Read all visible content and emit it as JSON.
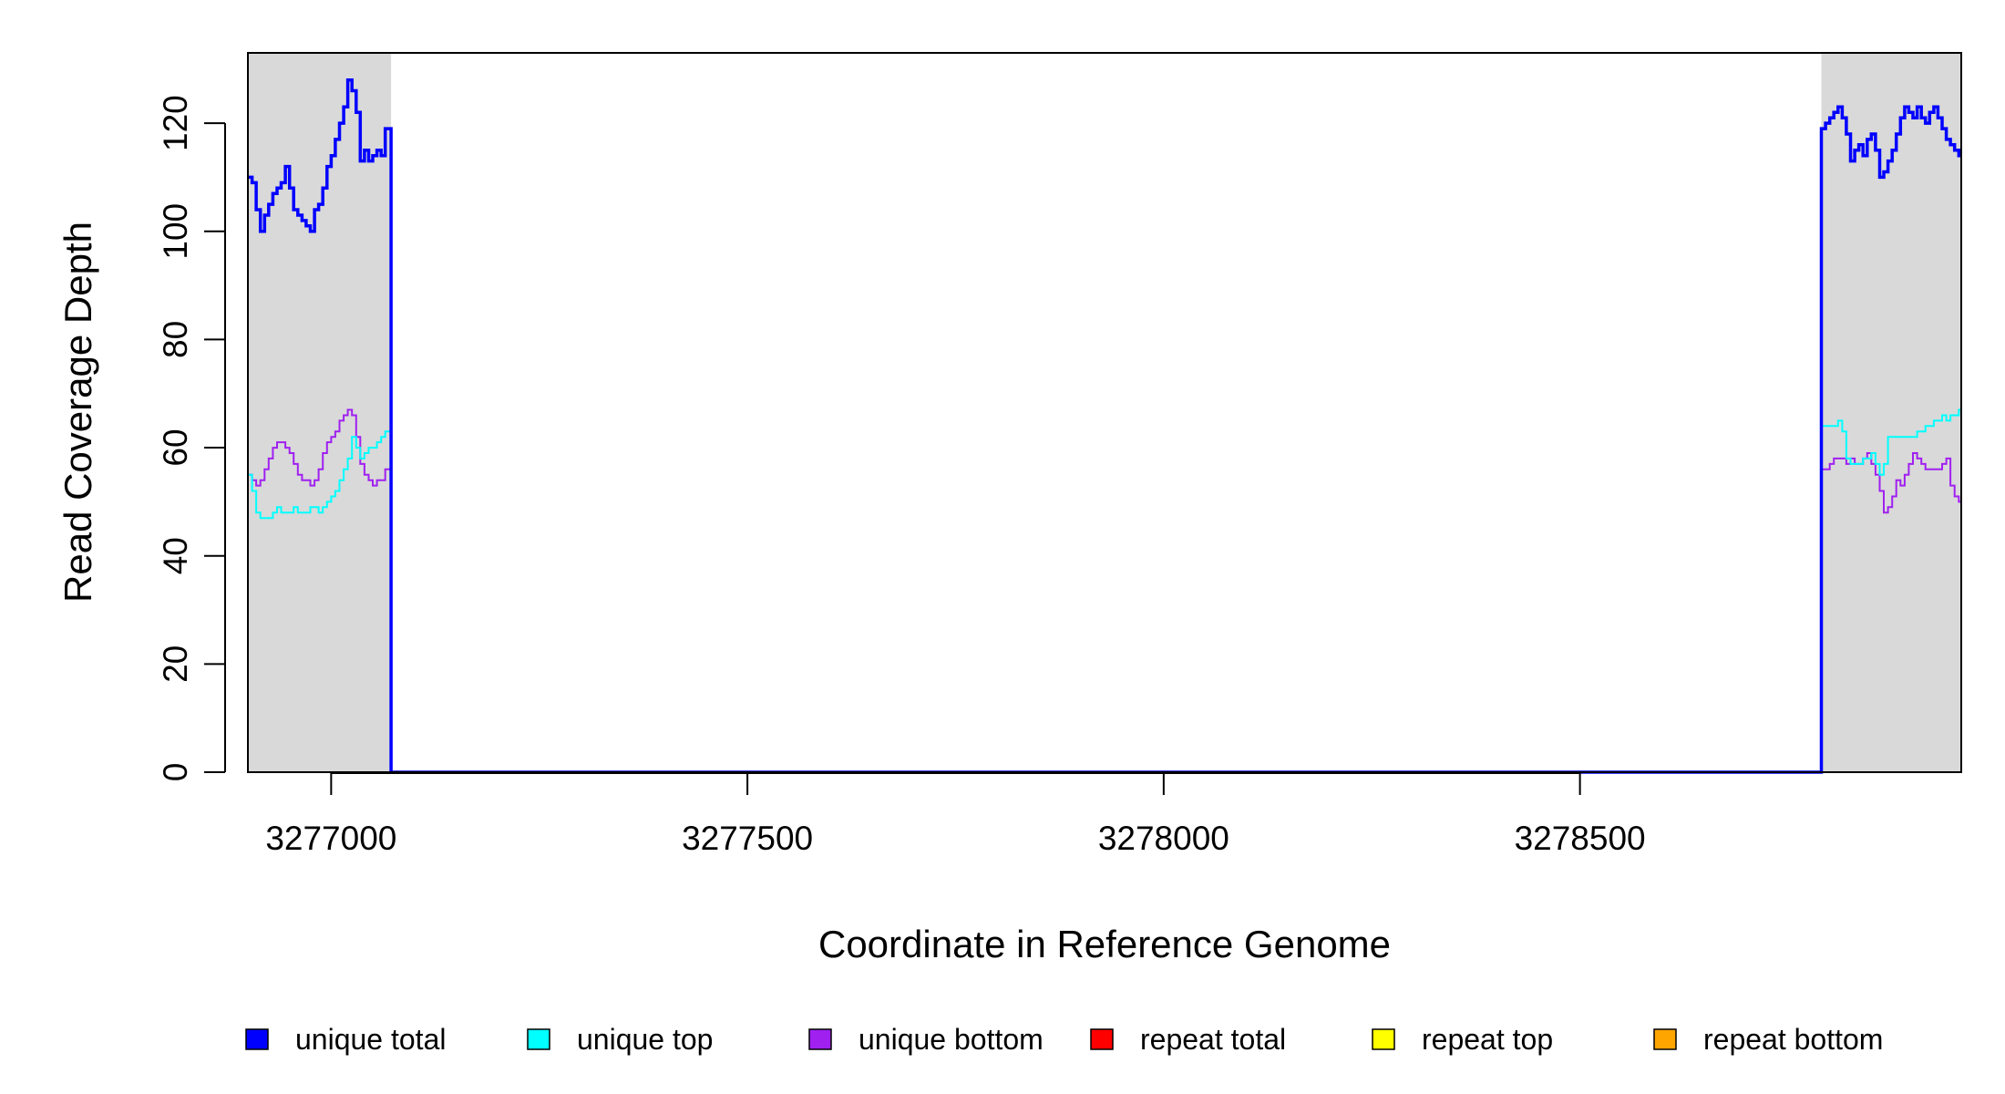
{
  "chart_data": {
    "type": "line",
    "xlabel": "Coordinate in Reference Genome",
    "ylabel": "Read Coverage Depth",
    "xlim": [
      3276900,
      3278958
    ],
    "ylim": [
      0,
      133
    ],
    "x_ticks": [
      3277000,
      3277500,
      3278000,
      3278500
    ],
    "x_tick_labels": [
      "3277000",
      "3277500",
      "3278000",
      "3278500"
    ],
    "y_ticks": [
      0,
      20,
      40,
      60,
      80,
      100,
      120
    ],
    "y_tick_labels": [
      "0",
      "20",
      "40",
      "60",
      "80",
      "100",
      "120"
    ],
    "grid": false,
    "legend_position": "bottom",
    "shaded_regions": [
      [
        3276900,
        3277072
      ],
      [
        3278790,
        3278958
      ]
    ],
    "shade_color": "#d9d9d9",
    "series": [
      {
        "name": "unique total",
        "color": "#0000ff",
        "points": [
          [
            3276900,
            110
          ],
          [
            3276905,
            109
          ],
          [
            3276910,
            104
          ],
          [
            3276915,
            100
          ],
          [
            3276920,
            103
          ],
          [
            3276925,
            105
          ],
          [
            3276930,
            107
          ],
          [
            3276935,
            108
          ],
          [
            3276940,
            109
          ],
          [
            3276945,
            112
          ],
          [
            3276950,
            108
          ],
          [
            3276955,
            104
          ],
          [
            3276960,
            103
          ],
          [
            3276965,
            102
          ],
          [
            3276970,
            101
          ],
          [
            3276975,
            100
          ],
          [
            3276980,
            104
          ],
          [
            3276985,
            105
          ],
          [
            3276990,
            108
          ],
          [
            3276995,
            112
          ],
          [
            3277000,
            114
          ],
          [
            3277005,
            117
          ],
          [
            3277010,
            120
          ],
          [
            3277015,
            123
          ],
          [
            3277020,
            128
          ],
          [
            3277025,
            126
          ],
          [
            3277030,
            122
          ],
          [
            3277035,
            113
          ],
          [
            3277040,
            115
          ],
          [
            3277045,
            113
          ],
          [
            3277050,
            114
          ],
          [
            3277055,
            115
          ],
          [
            3277060,
            114
          ],
          [
            3277065,
            119
          ],
          [
            3277072,
            0
          ],
          [
            3277500,
            0
          ],
          [
            3278000,
            0
          ],
          [
            3278500,
            0
          ],
          [
            3278790,
            119
          ],
          [
            3278795,
            120
          ],
          [
            3278800,
            121
          ],
          [
            3278805,
            122
          ],
          [
            3278810,
            123
          ],
          [
            3278815,
            121
          ],
          [
            3278820,
            118
          ],
          [
            3278825,
            113
          ],
          [
            3278830,
            115
          ],
          [
            3278835,
            116
          ],
          [
            3278840,
            114
          ],
          [
            3278845,
            117
          ],
          [
            3278850,
            118
          ],
          [
            3278855,
            115
          ],
          [
            3278860,
            110
          ],
          [
            3278865,
            111
          ],
          [
            3278870,
            113
          ],
          [
            3278875,
            115
          ],
          [
            3278880,
            118
          ],
          [
            3278885,
            121
          ],
          [
            3278890,
            123
          ],
          [
            3278895,
            122
          ],
          [
            3278900,
            121
          ],
          [
            3278905,
            123
          ],
          [
            3278910,
            121
          ],
          [
            3278915,
            120
          ],
          [
            3278920,
            122
          ],
          [
            3278925,
            123
          ],
          [
            3278930,
            121
          ],
          [
            3278935,
            119
          ],
          [
            3278940,
            117
          ],
          [
            3278945,
            116
          ],
          [
            3278950,
            115
          ],
          [
            3278955,
            114
          ]
        ]
      },
      {
        "name": "unique top",
        "color": "#00ffff",
        "points": [
          [
            3276900,
            55
          ],
          [
            3276905,
            52
          ],
          [
            3276910,
            48
          ],
          [
            3276915,
            47
          ],
          [
            3276920,
            47
          ],
          [
            3276925,
            47
          ],
          [
            3276930,
            48
          ],
          [
            3276935,
            49
          ],
          [
            3276940,
            48
          ],
          [
            3276945,
            48
          ],
          [
            3276950,
            48
          ],
          [
            3276955,
            49
          ],
          [
            3276960,
            48
          ],
          [
            3276965,
            48
          ],
          [
            3276970,
            48
          ],
          [
            3276975,
            49
          ],
          [
            3276980,
            49
          ],
          [
            3276985,
            48
          ],
          [
            3276990,
            49
          ],
          [
            3276995,
            50
          ],
          [
            3277000,
            51
          ],
          [
            3277005,
            52
          ],
          [
            3277010,
            54
          ],
          [
            3277015,
            56
          ],
          [
            3277020,
            58
          ],
          [
            3277025,
            62
          ],
          [
            3277030,
            60
          ],
          [
            3277035,
            58
          ],
          [
            3277040,
            59
          ],
          [
            3277045,
            60
          ],
          [
            3277050,
            60
          ],
          [
            3277055,
            61
          ],
          [
            3277060,
            62
          ],
          [
            3277065,
            63
          ],
          [
            3277072,
            0
          ],
          [
            3277500,
            0
          ],
          [
            3278000,
            0
          ],
          [
            3278500,
            0
          ],
          [
            3278790,
            64
          ],
          [
            3278795,
            64
          ],
          [
            3278800,
            64
          ],
          [
            3278805,
            64
          ],
          [
            3278810,
            65
          ],
          [
            3278815,
            63
          ],
          [
            3278820,
            58
          ],
          [
            3278825,
            57
          ],
          [
            3278830,
            57
          ],
          [
            3278835,
            57
          ],
          [
            3278840,
            58
          ],
          [
            3278845,
            58
          ],
          [
            3278850,
            59
          ],
          [
            3278855,
            57
          ],
          [
            3278860,
            55
          ],
          [
            3278865,
            57
          ],
          [
            3278870,
            62
          ],
          [
            3278875,
            62
          ],
          [
            3278880,
            62
          ],
          [
            3278885,
            62
          ],
          [
            3278890,
            62
          ],
          [
            3278895,
            62
          ],
          [
            3278900,
            62
          ],
          [
            3278905,
            63
          ],
          [
            3278910,
            63
          ],
          [
            3278915,
            64
          ],
          [
            3278920,
            64
          ],
          [
            3278925,
            65
          ],
          [
            3278930,
            65
          ],
          [
            3278935,
            66
          ],
          [
            3278940,
            65
          ],
          [
            3278945,
            66
          ],
          [
            3278950,
            66
          ],
          [
            3278955,
            67
          ]
        ]
      },
      {
        "name": "unique bottom",
        "color": "#a020f0",
        "points": [
          [
            3276900,
            55
          ],
          [
            3276905,
            54
          ],
          [
            3276910,
            53
          ],
          [
            3276915,
            54
          ],
          [
            3276920,
            56
          ],
          [
            3276925,
            58
          ],
          [
            3276930,
            60
          ],
          [
            3276935,
            61
          ],
          [
            3276940,
            61
          ],
          [
            3276945,
            60
          ],
          [
            3276950,
            59
          ],
          [
            3276955,
            57
          ],
          [
            3276960,
            55
          ],
          [
            3276965,
            54
          ],
          [
            3276970,
            54
          ],
          [
            3276975,
            53
          ],
          [
            3276980,
            54
          ],
          [
            3276985,
            56
          ],
          [
            3276990,
            59
          ],
          [
            3276995,
            61
          ],
          [
            3277000,
            62
          ],
          [
            3277005,
            63
          ],
          [
            3277010,
            65
          ],
          [
            3277015,
            66
          ],
          [
            3277020,
            67
          ],
          [
            3277025,
            66
          ],
          [
            3277030,
            62
          ],
          [
            3277035,
            57
          ],
          [
            3277040,
            55
          ],
          [
            3277045,
            54
          ],
          [
            3277050,
            53
          ],
          [
            3277055,
            54
          ],
          [
            3277060,
            54
          ],
          [
            3277065,
            56
          ],
          [
            3277072,
            0
          ],
          [
            3277500,
            0
          ],
          [
            3278000,
            0
          ],
          [
            3278500,
            0
          ],
          [
            3278790,
            56
          ],
          [
            3278795,
            56
          ],
          [
            3278800,
            57
          ],
          [
            3278805,
            58
          ],
          [
            3278810,
            58
          ],
          [
            3278815,
            58
          ],
          [
            3278820,
            57
          ],
          [
            3278825,
            58
          ],
          [
            3278830,
            57
          ],
          [
            3278835,
            57
          ],
          [
            3278840,
            58
          ],
          [
            3278845,
            59
          ],
          [
            3278850,
            57
          ],
          [
            3278855,
            55
          ],
          [
            3278860,
            52
          ],
          [
            3278865,
            48
          ],
          [
            3278870,
            49
          ],
          [
            3278875,
            51
          ],
          [
            3278880,
            54
          ],
          [
            3278885,
            53
          ],
          [
            3278890,
            55
          ],
          [
            3278895,
            57
          ],
          [
            3278900,
            59
          ],
          [
            3278905,
            58
          ],
          [
            3278910,
            57
          ],
          [
            3278915,
            56
          ],
          [
            3278920,
            56
          ],
          [
            3278925,
            56
          ],
          [
            3278930,
            56
          ],
          [
            3278935,
            57
          ],
          [
            3278940,
            58
          ],
          [
            3278945,
            53
          ],
          [
            3278950,
            51
          ],
          [
            3278955,
            50
          ]
        ]
      },
      {
        "name": "repeat total",
        "color": "#ff0000",
        "points": [
          [
            3276900,
            0
          ],
          [
            3278958,
            0
          ]
        ]
      },
      {
        "name": "repeat top",
        "color": "#ffff00",
        "points": [
          [
            3276900,
            0
          ],
          [
            3278958,
            0
          ]
        ]
      },
      {
        "name": "repeat bottom",
        "color": "#ffa500",
        "points": [
          [
            3276900,
            0
          ],
          [
            3278958,
            0
          ]
        ]
      }
    ]
  }
}
